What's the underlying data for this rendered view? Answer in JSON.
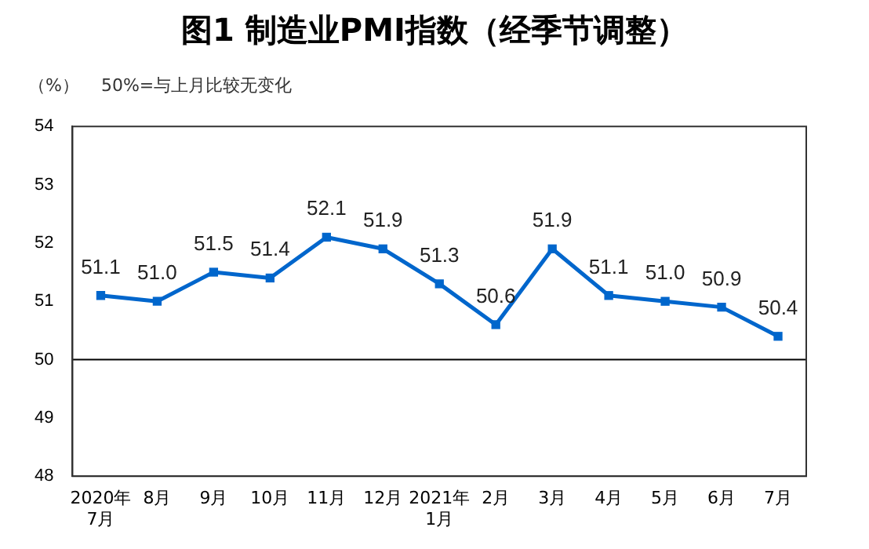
{
  "chart_data": {
    "type": "line",
    "title": "图1  制造业PMI指数（经季节调整）",
    "ylabel": "（%）",
    "annotations": [
      "50%=与上月比较无变化"
    ],
    "categories": [
      "2020年\n7月",
      "8月",
      "9月",
      "10月",
      "11月",
      "12月",
      "2021年\n1月",
      "2月",
      "3月",
      "4月",
      "5月",
      "6月",
      "7月"
    ],
    "series": [
      {
        "color": "#0066cc",
        "values": [
          51.1,
          51.0,
          51.5,
          51.4,
          52.1,
          51.9,
          51.3,
          50.6,
          51.9,
          51.1,
          51.0,
          50.9,
          50.4
        ],
        "value_labels": [
          "51.1",
          "51.0",
          "51.5",
          "51.4",
          "52.1",
          "51.9",
          "51.3",
          "50.6",
          "51.9",
          "51.1",
          "51.0",
          "50.9",
          "50.4"
        ]
      }
    ],
    "ylim": [
      48,
      54
    ],
    "yticks": [
      48,
      49,
      50,
      51,
      52,
      53,
      54
    ],
    "ref_lines": [
      {
        "axis": "y",
        "value": 50,
        "color": "#000000"
      }
    ],
    "marker": "square",
    "line_style": "solid",
    "grid": false,
    "legend": false
  }
}
